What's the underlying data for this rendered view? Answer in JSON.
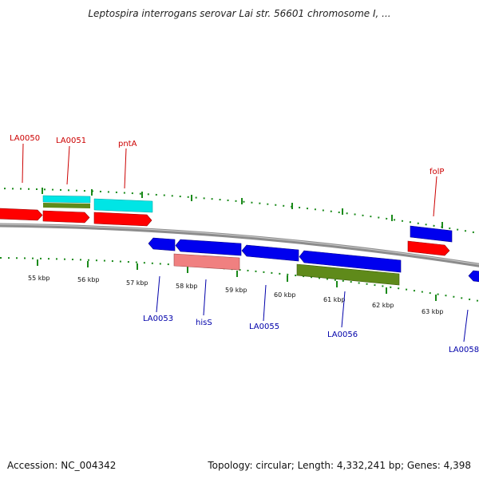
{
  "title": "Leptospira interrogans serovar Lai str. 56601 chromosome I, ...",
  "footer": {
    "accession": "Accession: NC_004342",
    "summary": "Topology: circular; Length: 4,332,241 bp; Genes: 4,398"
  },
  "colors": {
    "forward_gene": "#ff0000",
    "reverse_gene": "#0000ee",
    "rrna_like": "#00e5e5",
    "misc_feature": "#5f8a1a",
    "pink_feature": "#f08080",
    "ticks": "#1a8a1a",
    "forward_label": "#cc0000",
    "reverse_label": "#0000aa"
  },
  "ruler": {
    "ticks_kbp": [
      "55 kbp",
      "56 kbp",
      "57 kbp",
      "58 kbp",
      "59 kbp",
      "60 kbp",
      "61 kbp",
      "62 kbp",
      "63 kbp"
    ]
  },
  "labels": {
    "forward": [
      "LA0050",
      "LA0051",
      "pntA",
      "folP"
    ],
    "reverse": [
      "LA0053",
      "hisS",
      "LA0055",
      "LA0056",
      "LA0058"
    ]
  }
}
